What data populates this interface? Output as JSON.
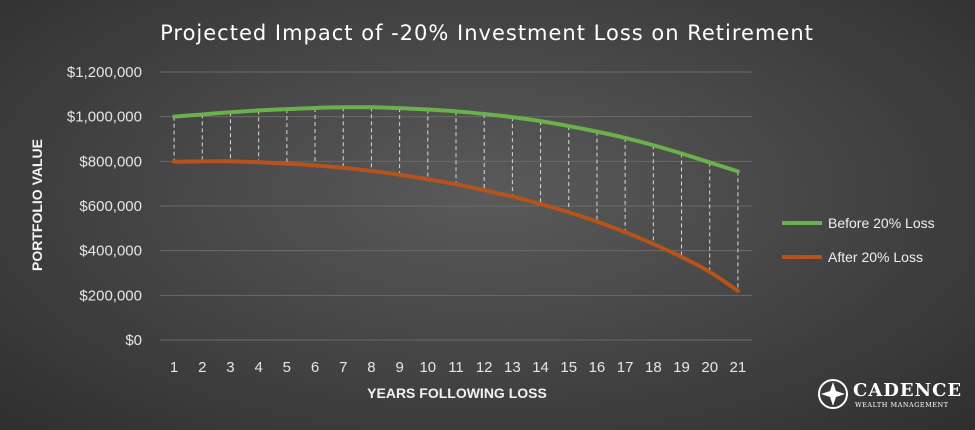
{
  "chart_data": {
    "type": "line",
    "title": "Projected Impact of -20% Investment Loss on Retirement",
    "xlabel": "YEARS FOLLOWING LOSS",
    "ylabel": "PORTFOLIO VALUE",
    "x": [
      1,
      2,
      3,
      4,
      5,
      6,
      7,
      8,
      9,
      10,
      11,
      12,
      13,
      14,
      15,
      16,
      17,
      18,
      19,
      20,
      21
    ],
    "ylim": [
      0,
      1200000
    ],
    "yticks": [
      0,
      200000,
      400000,
      600000,
      800000,
      1000000,
      1200000
    ],
    "ytick_labels": [
      "$0",
      "$200,000",
      "$400,000",
      "$600,000",
      "$800,000",
      "$1,000,000",
      "$1,200,000"
    ],
    "grid": true,
    "legend_position": "right",
    "drop_lines": true,
    "series": [
      {
        "name": "Before 20% Loss",
        "color": "#6ab04c",
        "values": [
          1000000,
          1010000,
          1020000,
          1028000,
          1034000,
          1039000,
          1042000,
          1042000,
          1038000,
          1032000,
          1024000,
          1012000,
          998000,
          980000,
          958000,
          933000,
          905000,
          872000,
          835000,
          795000,
          755000
        ]
      },
      {
        "name": "After 20% Loss",
        "color": "#b5531a",
        "values": [
          798000,
          800000,
          800000,
          796000,
          790000,
          782000,
          771000,
          757000,
          740000,
          720000,
          697000,
          671000,
          642000,
          609000,
          572000,
          530000,
          483000,
          430000,
          372000,
          305000,
          220000
        ]
      }
    ]
  },
  "logo": {
    "name": "CADENCE",
    "tagline": "WEALTH MANAGEMENT"
  }
}
